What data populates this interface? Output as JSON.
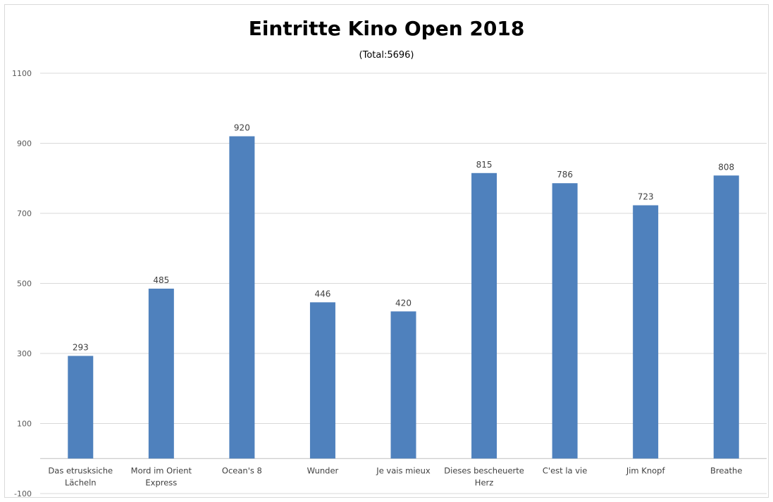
{
  "chart_data": {
    "type": "bar",
    "title": "Eintritte Kino Open 2018",
    "subtitle": "(Total:5696)",
    "categories": [
      [
        "Das etrusksiche",
        "Lächeln"
      ],
      [
        "Mord im Orient",
        "Express"
      ],
      [
        "Ocean's 8"
      ],
      [
        "Wunder"
      ],
      [
        "Je vais mieux"
      ],
      [
        "Dieses bescheuerte",
        "Herz"
      ],
      [
        "C'est la vie"
      ],
      [
        "Jim Knopf"
      ],
      [
        "Breathe"
      ]
    ],
    "values": [
      293,
      485,
      920,
      446,
      420,
      815,
      786,
      723,
      808
    ],
    "ylim": [
      -100,
      1100
    ],
    "yticks": [
      -100,
      100,
      300,
      500,
      700,
      900,
      1100
    ],
    "xlabel": "",
    "ylabel": "",
    "grid": true,
    "legend": "none",
    "colors": {
      "bar": "#4f81bd",
      "grid": "#d9d9d9",
      "axis": "#bfbfbf"
    }
  }
}
